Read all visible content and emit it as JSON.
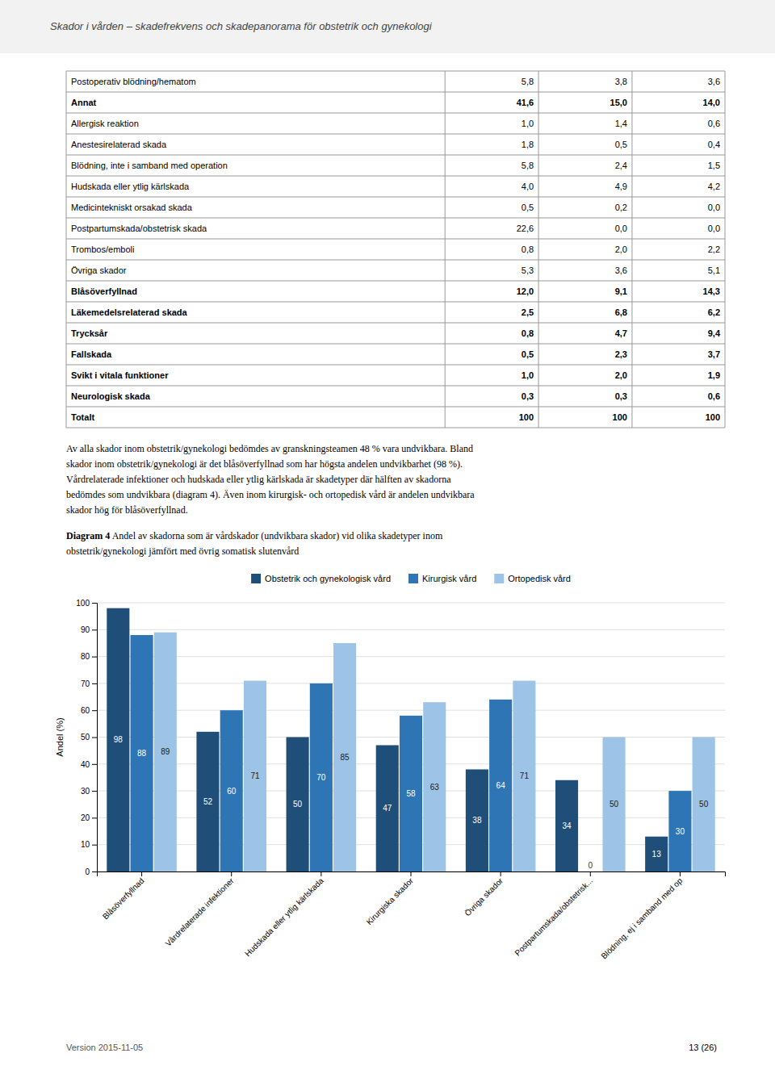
{
  "page_title": "Skador i vården – skadefrekvens och skadepanorama för obstetrik och gynekologi",
  "table": {
    "rows": [
      {
        "label": "Postoperativ blödning/hematom",
        "bold": false,
        "v1": "5,8",
        "v2": "3,8",
        "v3": "3,6"
      },
      {
        "label": "Annat",
        "bold": true,
        "v1": "41,6",
        "v2": "15,0",
        "v3": "14,0"
      },
      {
        "label": "Allergisk reaktion",
        "bold": false,
        "v1": "1,0",
        "v2": "1,4",
        "v3": "0,6"
      },
      {
        "label": "Anestesirelaterad skada",
        "bold": false,
        "v1": "1,8",
        "v2": "0,5",
        "v3": "0,4"
      },
      {
        "label": "Blödning, inte i samband med operation",
        "bold": false,
        "v1": "5,8",
        "v2": "2,4",
        "v3": "1,5"
      },
      {
        "label": "Hudskada eller ytlig kärlskada",
        "bold": false,
        "v1": "4,0",
        "v2": "4,9",
        "v3": "4,2"
      },
      {
        "label": "Medicintekniskt orsakad skada",
        "bold": false,
        "v1": "0,5",
        "v2": "0,2",
        "v3": "0,0"
      },
      {
        "label": "Postpartumskada/obstetrisk skada",
        "bold": false,
        "v1": "22,6",
        "v2": "0,0",
        "v3": "0,0"
      },
      {
        "label": "Trombos/emboli",
        "bold": false,
        "v1": "0,8",
        "v2": "2,0",
        "v3": "2,2"
      },
      {
        "label": "Övriga skador",
        "bold": false,
        "v1": "5,3",
        "v2": "3,6",
        "v3": "5,1"
      },
      {
        "label": "Blåsöverfyllnad",
        "bold": true,
        "v1": "12,0",
        "v2": "9,1",
        "v3": "14,3"
      },
      {
        "label": "Läkemedelsrelaterad skada",
        "bold": true,
        "v1": "2,5",
        "v2": "6,8",
        "v3": "6,2"
      },
      {
        "label": "Trycksår",
        "bold": true,
        "v1": "0,8",
        "v2": "4,7",
        "v3": "9,4"
      },
      {
        "label": "Fallskada",
        "bold": true,
        "v1": "0,5",
        "v2": "2,3",
        "v3": "3,7"
      },
      {
        "label": "Svikt i vitala funktioner",
        "bold": true,
        "v1": "1,0",
        "v2": "2,0",
        "v3": "1,9"
      },
      {
        "label": "Neurologisk skada",
        "bold": true,
        "v1": "0,3",
        "v2": "0,3",
        "v3": "0,6"
      },
      {
        "label": "Totalt",
        "bold": true,
        "v1": "100",
        "v2": "100",
        "v3": "100"
      }
    ]
  },
  "paragraph_lines": [
    "Av alla skador inom obstetrik/gynekologi bedömdes av granskningsteamen 48 % vara undvikbara. Bland",
    "skador inom obstetrik/gynekologi är det blåsöverfyllnad som har högsta andelen undvikbarhet (98 %).",
    "Vårdrelaterade infektioner och hudskada eller ytlig kärlskada är skadetyper där hälften av skadorna",
    "bedömdes som undvikbara (diagram 4). Även inom kirurgisk- och ortopedisk vård är andelen undvikbara",
    "skador hög för blåsöverfyllnad."
  ],
  "diagram_label_bold": "Diagram 4",
  "diagram_label_line1": " Andel av skadorna som är vårdskador (undvikbara skador) vid olika skadetyper inom",
  "diagram_label_line2": "obstetrik/gynekologi jämfört med övrig somatisk slutenvård",
  "footer_left": "Version 2015-11-05",
  "footer_right": "13 (26)",
  "chart_data": {
    "type": "bar",
    "categories": [
      "Blåsöverfyllnad",
      "Vårdrelaterade infektioner",
      "Hudskada eller ytlig kärlskada",
      "Kirurgiska skador",
      "Övriga skador",
      "Postpartumskada/obstetrisk...",
      "Blödning, ej i samband med op"
    ],
    "series": [
      {
        "name": "Obstetrik och gynekologisk vård",
        "color": "#1f4e79",
        "values": [
          98,
          52,
          50,
          47,
          38,
          34,
          13
        ]
      },
      {
        "name": "Kirurgisk vård",
        "color": "#2e75b6",
        "values": [
          88,
          60,
          70,
          58,
          64,
          0,
          30
        ]
      },
      {
        "name": "Ortopedisk vård",
        "color": "#9dc3e6",
        "values": [
          89,
          71,
          85,
          63,
          71,
          50,
          50
        ]
      }
    ],
    "ylabel": "Andel (%)",
    "ylim": [
      0,
      100
    ],
    "yticks": [
      0,
      10,
      20,
      30,
      40,
      50,
      60,
      70,
      80,
      90,
      100
    ],
    "grid": true,
    "legend": "top",
    "data_labels": true
  }
}
